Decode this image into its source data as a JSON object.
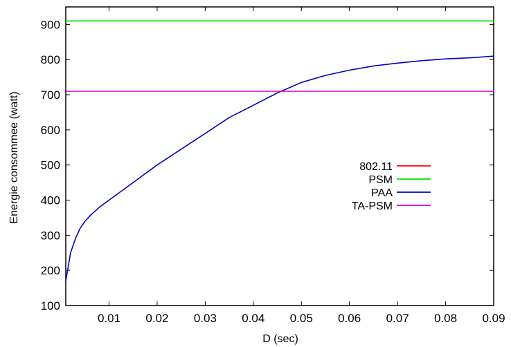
{
  "chart_data": {
    "type": "line",
    "title": "",
    "xlabel": "D (sec)",
    "ylabel": "Energie consommee (watt)",
    "xlim": [
      0.001,
      0.09
    ],
    "ylim": [
      100,
      950
    ],
    "xticks": [
      0.01,
      0.02,
      0.03,
      0.04,
      0.05,
      0.06,
      0.07,
      0.08,
      0.09
    ],
    "xtick_labels": [
      "0.01",
      "0.02",
      "0.03",
      "0.04",
      "0.05",
      "0.06",
      "0.07",
      "0.08",
      "0.09"
    ],
    "yticks": [
      100,
      200,
      300,
      400,
      500,
      600,
      700,
      800,
      900
    ],
    "ytick_labels": [
      "100",
      "200",
      "300",
      "400",
      "500",
      "600",
      "700",
      "800",
      "900"
    ],
    "grid": false,
    "legend_position": "center-right",
    "series": [
      {
        "name": "802.11",
        "color": "#ff0000",
        "x": [],
        "y": []
      },
      {
        "name": "PSM",
        "color": "#00e000",
        "x": [
          0.001,
          0.09
        ],
        "y": [
          910,
          910
        ]
      },
      {
        "name": "PAA",
        "color": "#0000c0",
        "x": [
          0.001,
          0.002,
          0.003,
          0.004,
          0.005,
          0.006,
          0.008,
          0.01,
          0.015,
          0.02,
          0.025,
          0.03,
          0.035,
          0.04,
          0.045,
          0.05,
          0.055,
          0.06,
          0.065,
          0.07,
          0.075,
          0.08,
          0.085,
          0.09
        ],
        "y": [
          170,
          250,
          290,
          320,
          340,
          355,
          380,
          400,
          450,
          500,
          545,
          590,
          635,
          670,
          705,
          735,
          755,
          770,
          782,
          790,
          797,
          802,
          805,
          810
        ]
      },
      {
        "name": "TA-PSM",
        "color": "#d000d0",
        "x": [
          0.001,
          0.09
        ],
        "y": [
          710,
          710
        ]
      }
    ]
  }
}
